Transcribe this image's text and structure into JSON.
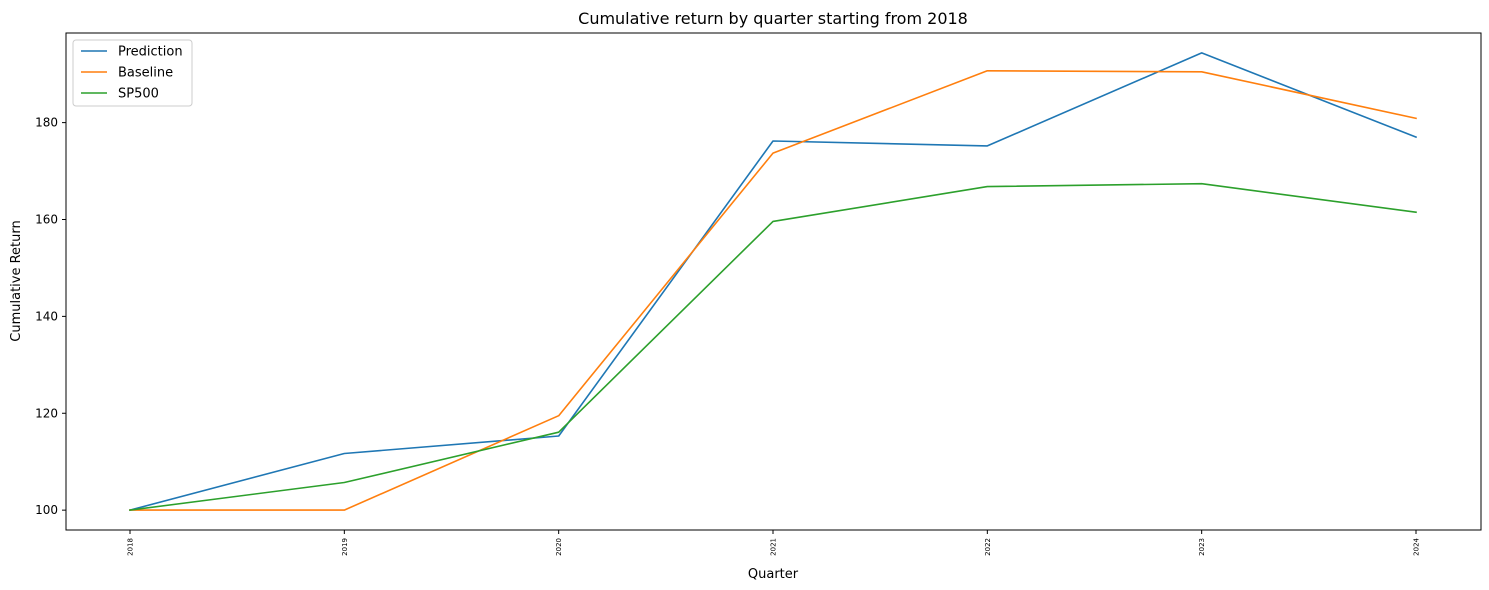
{
  "chart_data": {
    "type": "line",
    "title": "Cumulative return by quarter starting from 2018",
    "xlabel": "Quarter",
    "ylabel": "Cumulative Return",
    "categories": [
      "2018",
      "2019",
      "2020",
      "2021",
      "2022",
      "2023",
      "2024"
    ],
    "y_ticks": [
      100,
      120,
      140,
      160,
      180
    ],
    "ylim": [
      95.9,
      198.5
    ],
    "grid": false,
    "legend_position": "top-left",
    "series": [
      {
        "name": "Prediction",
        "color": "#1f77b4",
        "values": [
          100,
          111.7,
          115.3,
          176.2,
          175.2,
          194.4,
          177.0
        ]
      },
      {
        "name": "Baseline",
        "color": "#ff7f0e",
        "values": [
          100,
          100,
          119.5,
          173.7,
          190.7,
          190.5,
          180.9
        ]
      },
      {
        "name": "SP500",
        "color": "#2ca02c",
        "values": [
          100,
          105.7,
          116.1,
          159.6,
          166.8,
          167.4,
          161.5
        ]
      }
    ]
  }
}
